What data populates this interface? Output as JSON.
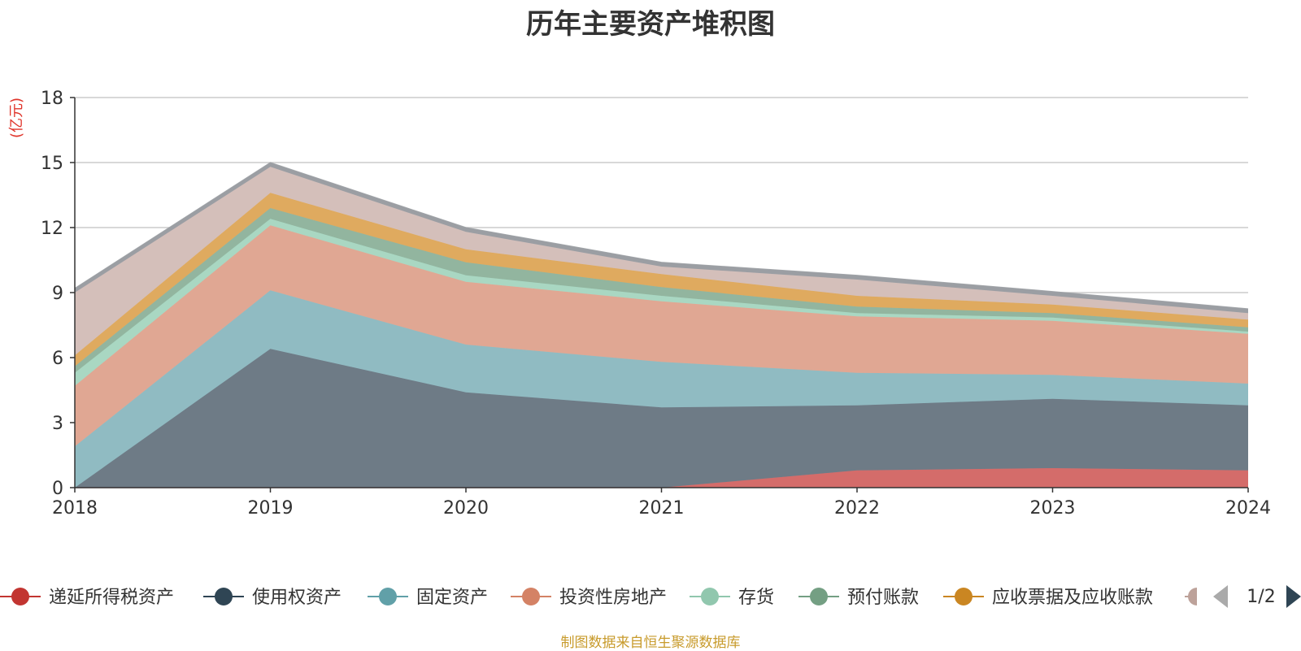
{
  "chart_data": {
    "type": "area",
    "stacked": true,
    "title": "历年主要资产堆积图",
    "ylabel": "(亿元)",
    "x": [
      "2018",
      "2019",
      "2020",
      "2021",
      "2022",
      "2023",
      "2024"
    ],
    "ylim": [
      0,
      18
    ],
    "yticks": [
      0,
      3,
      6,
      9,
      12,
      15,
      18
    ],
    "grid": true,
    "legend_position": "bottom",
    "series": [
      {
        "name": "递延所得税资产",
        "color": "#c23531",
        "fill": "#d46c6a",
        "values": [
          0,
          0,
          0,
          0,
          0.8,
          0.9,
          0.8
        ]
      },
      {
        "name": "使用权资产",
        "color": "#2f4554",
        "fill": "#6e7b86",
        "values": [
          0,
          6.4,
          4.4,
          3.7,
          3.0,
          3.2,
          3.0
        ]
      },
      {
        "name": "固定资产",
        "color": "#61a0a8",
        "fill": "#90bbc2",
        "values": [
          1.9,
          2.7,
          2.2,
          2.1,
          1.5,
          1.1,
          1.0
        ]
      },
      {
        "name": "投资性房地产",
        "color": "#d48265",
        "fill": "#e0a793",
        "values": [
          2.8,
          3.0,
          2.9,
          2.8,
          2.6,
          2.5,
          2.3
        ]
      },
      {
        "name": "存货",
        "color": "#91c7ae",
        "fill": "#a9d7c2",
        "values": [
          0.6,
          0.3,
          0.3,
          0.25,
          0.15,
          0.15,
          0.1
        ]
      },
      {
        "name": "预付账款",
        "color": "#749f83",
        "fill": "#92b59f",
        "values": [
          0.3,
          0.5,
          0.6,
          0.4,
          0.3,
          0.2,
          0.2
        ]
      },
      {
        "name": "应收票据及应收账款",
        "color": "#ca8622",
        "fill": "#dfaa5f",
        "values": [
          0.5,
          0.7,
          0.6,
          0.6,
          0.5,
          0.4,
          0.35
        ]
      },
      {
        "name": "",
        "color": "#bda29a",
        "fill": "#d4bfba",
        "values": [
          2.9,
          1.2,
          0.8,
          0.35,
          0.75,
          0.4,
          0.3
        ]
      },
      {
        "name": "",
        "color": "#9b9ea3",
        "fill": "#9b9ea3",
        "values": [
          0.2,
          0.2,
          0.2,
          0.2,
          0.2,
          0.2,
          0.2
        ]
      }
    ]
  },
  "legend": {
    "page_indicator": "1/2"
  },
  "footer": {
    "source_note": "制图数据来自恒生聚源数据库"
  }
}
